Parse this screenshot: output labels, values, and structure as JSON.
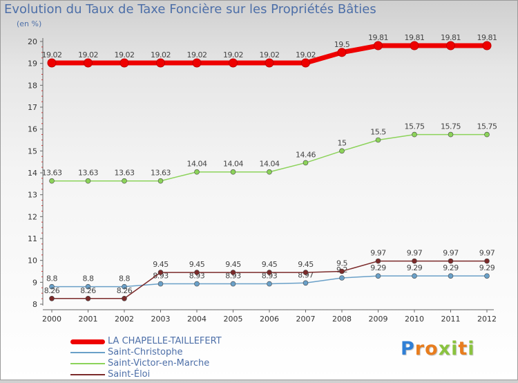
{
  "title": "Evolution du Taux de Taxe Foncière sur les Propriétés Bâties",
  "unit": "(en %)",
  "logo": {
    "letters": [
      "P",
      "r",
      "o",
      "x",
      "i",
      "t",
      "i"
    ],
    "colors": [
      "#2f7fd6",
      "#e87d1e",
      "#e87d1e",
      "#8ac33f",
      "#8ac33f",
      "#e87d1e",
      "#8ac33f"
    ]
  },
  "chart_data": {
    "type": "line",
    "title": "Evolution du Taux de Taxe Foncière sur les Propriétés Bâties",
    "ylabel": "(en %)",
    "xlabel": "",
    "x": [
      "2000",
      "2001",
      "2002",
      "2003",
      "2004",
      "2005",
      "2006",
      "2007",
      "2008",
      "2009",
      "2010",
      "2011",
      "2012"
    ],
    "ylim": [
      8,
      20
    ],
    "yticks": [
      8,
      9,
      10,
      11,
      12,
      13,
      14,
      15,
      16,
      17,
      18,
      19,
      20
    ],
    "grid": false,
    "legend": "bottom-left",
    "series": [
      {
        "name": "LA CHAPELLE-TAILLEFERT",
        "color": "#ee0000",
        "values": [
          19.02,
          19.02,
          19.02,
          19.02,
          19.02,
          19.02,
          19.02,
          19.02,
          19.5,
          19.81,
          19.81,
          19.81,
          19.81
        ],
        "labels": [
          "19.02",
          "19.02",
          "19.02",
          "19.02",
          "19.02",
          "19.02",
          "19.02",
          "19.02",
          "19.5",
          "19.81",
          "19.81",
          "19.81",
          "19.81"
        ]
      },
      {
        "name": "Saint-Christophe",
        "color": "#6aa0c8",
        "values": [
          8.8,
          8.8,
          8.8,
          8.93,
          8.93,
          8.93,
          8.93,
          8.97,
          9.2,
          9.29,
          9.29,
          9.29,
          9.29
        ],
        "labels": [
          "8.8",
          "8.8",
          "8.8",
          "8.93",
          "8.93",
          "8.93",
          "8.93",
          "8.97",
          "9.2",
          "9.29",
          "9.29",
          "9.29",
          "9.29"
        ]
      },
      {
        "name": "Saint-Victor-en-Marche",
        "color": "#8cd35a",
        "values": [
          13.63,
          13.63,
          13.63,
          13.63,
          14.04,
          14.04,
          14.04,
          14.46,
          15,
          15.5,
          15.75,
          15.75,
          15.75
        ],
        "labels": [
          "13.63",
          "13.63",
          "13.63",
          "13.63",
          "14.04",
          "14.04",
          "14.04",
          "14.46",
          "15",
          "15.5",
          "15.75",
          "15.75",
          "15.75"
        ]
      },
      {
        "name": "Saint-Éloi",
        "color": "#7b2a2a",
        "values": [
          8.26,
          8.26,
          8.26,
          9.45,
          9.45,
          9.45,
          9.45,
          9.45,
          9.5,
          9.97,
          9.97,
          9.97,
          9.97
        ],
        "labels": [
          "8.26",
          "8.26",
          "8.26",
          "9.45",
          "9.45",
          "9.45",
          "9.45",
          "9.45",
          "9.5",
          "9.97",
          "9.97",
          "9.97",
          "9.97"
        ]
      }
    ]
  }
}
